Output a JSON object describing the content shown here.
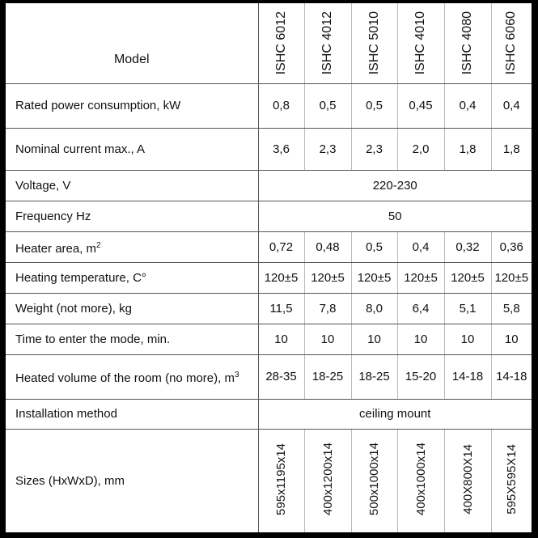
{
  "header": {
    "label": "Model",
    "models": [
      "ISHC 6012",
      "ISHC 4012",
      "ISHC 5010",
      "ISHC 4010",
      "ISHC 4080",
      "ISHC 6060"
    ]
  },
  "rows": [
    {
      "label": "Rated power consumption, kW",
      "values": [
        "0,8",
        "0,5",
        "0,5",
        "0,45",
        "0,4",
        "0,4"
      ]
    },
    {
      "label": "Nominal current max., A",
      "values": [
        "3,6",
        "2,3",
        "2,3",
        "2,0",
        "1,8",
        "1,8"
      ]
    },
    {
      "label": "Voltage, V",
      "merged": "220-230"
    },
    {
      "label": "Frequency Hz",
      "merged": "50"
    },
    {
      "label": "Heater area, m",
      "sup": "2",
      "values": [
        "0,72",
        "0,48",
        "0,5",
        "0,4",
        "0,32",
        "0,36"
      ]
    },
    {
      "label": "Heating temperature, C°",
      "values": [
        "120±5",
        "120±5",
        "120±5",
        "120±5",
        "120±5",
        "120±5"
      ]
    },
    {
      "label": "Weight (not more), kg",
      "values": [
        "11,5",
        "7,8",
        "8,0",
        "6,4",
        "5,1",
        "5,8"
      ]
    },
    {
      "label": "Time to enter the mode, min.",
      "values": [
        "10",
        "10",
        "10",
        "10",
        "10",
        "10"
      ]
    },
    {
      "label": "Heated volume of the room (no more), m",
      "sup": "3",
      "values": [
        "28-35",
        "18-25",
        "18-25",
        "15-20",
        "14-18",
        "14-18"
      ]
    },
    {
      "label": "Installation method",
      "merged": "ceiling mount"
    },
    {
      "label": "Sizes  (HxWxD), mm",
      "values": [
        "595x1195x14",
        "400x1200x14",
        "500x1000x14",
        "400x1000x14",
        "400X800X14",
        "595X595X14"
      ]
    }
  ]
}
